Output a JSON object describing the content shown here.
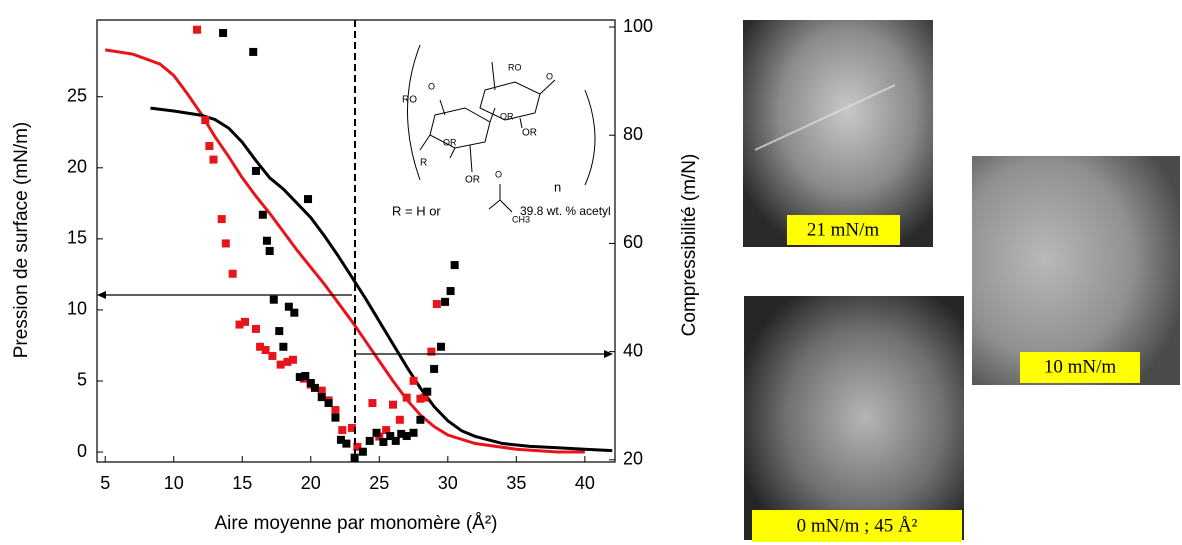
{
  "chart_data": {
    "type": "scatter-line",
    "x_label": "Aire moyenne par monomère (Å²)",
    "y_label": "Pression de surface (mN/m)",
    "y2_label": "Compressibilité (m/N)",
    "xlim": [
      4.4,
      42.2
    ],
    "xticks": [
      5,
      10,
      15,
      20,
      25,
      30,
      35,
      40
    ],
    "ylim": [
      -0.7,
      30.4
    ],
    "yticks": [
      0,
      5,
      10,
      15,
      20,
      25
    ],
    "y2lim": [
      19.6,
      101.3
    ],
    "y2ticks": [
      20,
      40,
      60,
      80,
      100
    ],
    "series": [
      {
        "kind": "line",
        "color": "#e8141c",
        "x": [
          5,
          7,
          9,
          10,
          11,
          12,
          13,
          14,
          15,
          16,
          17,
          18,
          19,
          20,
          21,
          22,
          23,
          24,
          25,
          26,
          27,
          28,
          29,
          30,
          32,
          35,
          38,
          40
        ],
        "values": [
          28.3,
          28,
          27.3,
          26.5,
          25.2,
          23.8,
          22.2,
          20.8,
          19.3,
          18,
          16.8,
          15.5,
          14.2,
          13,
          11.8,
          10.5,
          9.2,
          7.8,
          6.4,
          5,
          3.7,
          2.6,
          1.8,
          1.2,
          0.6,
          0.2,
          0,
          0
        ]
      },
      {
        "kind": "line",
        "color": "#000000",
        "x": [
          8.3,
          10,
          12,
          13,
          14,
          15,
          16,
          17,
          18,
          19,
          20,
          21,
          22,
          23,
          24,
          25,
          26,
          27,
          28,
          29,
          30,
          31,
          32,
          34,
          36,
          38,
          40,
          42
        ],
        "values": [
          24.2,
          24,
          23.7,
          23.4,
          22.8,
          21.8,
          20.5,
          19.3,
          18.5,
          17.5,
          16.5,
          15.2,
          13.8,
          12.3,
          10.8,
          9.2,
          7.6,
          6,
          4.5,
          3.2,
          2.2,
          1.5,
          1.1,
          0.6,
          0.4,
          0.3,
          0.2,
          0.1
        ]
      },
      {
        "kind": "scatter",
        "axis": "y2",
        "color": "#e8141c",
        "x": [
          11.7,
          12.3,
          12.6,
          12.9,
          13.5,
          13.8,
          14.3,
          14.8,
          15.2,
          16,
          16.3,
          16.7,
          17.2,
          17.8,
          18.3,
          18.7,
          19.5,
          20,
          20.8,
          21.3,
          21.8,
          22.3,
          23,
          23.4,
          24.5,
          25,
          25.5,
          26,
          26.5,
          27,
          27.5,
          28,
          28.3,
          28.8,
          29.2
        ],
        "values": [
          99.5,
          82.8,
          78,
          75.5,
          64.5,
          60,
          54.4,
          45,
          45.5,
          44.2,
          40.9,
          40.3,
          39.2,
          37.6,
          38.1,
          38.5,
          35,
          33.9,
          32.8,
          31,
          29.2,
          25.5,
          25.9,
          22.4,
          30.5,
          24.3,
          25.5,
          30.2,
          27.4,
          31.5,
          34.6,
          31.3,
          31.5,
          40,
          48.8
        ]
      },
      {
        "kind": "scatter",
        "axis": "y2",
        "color": "#000000",
        "x": [
          13.6,
          15.8,
          16,
          16.5,
          16.8,
          17,
          17.3,
          17.7,
          18,
          18.4,
          18.8,
          19.2,
          19.8,
          19.6,
          20,
          20.3,
          20.8,
          21.3,
          21.8,
          22.2,
          22.6,
          23.2,
          23.8,
          24.3,
          24.8,
          25.3,
          25.8,
          26.2,
          26.6,
          27,
          27.5,
          28,
          28.5,
          29,
          29.5,
          29.8,
          30.2,
          30.5
        ],
        "values": [
          98.9,
          95.4,
          73.4,
          65.3,
          60.5,
          58.6,
          49.6,
          43.8,
          40.9,
          48.3,
          47.2,
          35.3,
          68.2,
          35.5,
          34.2,
          33.3,
          31.6,
          30.5,
          27.8,
          23.7,
          23,
          20.4,
          21.5,
          23.5,
          25,
          23.3,
          24.4,
          23.5,
          24.8,
          24.4,
          25,
          27.4,
          32.6,
          36.8,
          40.9,
          49.2,
          51.2,
          56
        ]
      }
    ],
    "inset_labels": [
      "RO",
      "O",
      "R",
      "RO",
      "O",
      "OR",
      "OR",
      "OR",
      "OR",
      "n",
      "R = H or",
      "O",
      "CH3",
      "39.8 wt. % acetyl"
    ]
  },
  "images": [
    {
      "label": "21 mN/m"
    },
    {
      "label": "10 mN/m"
    },
    {
      "label": "0 mN/m ; 45 Å²"
    }
  ]
}
